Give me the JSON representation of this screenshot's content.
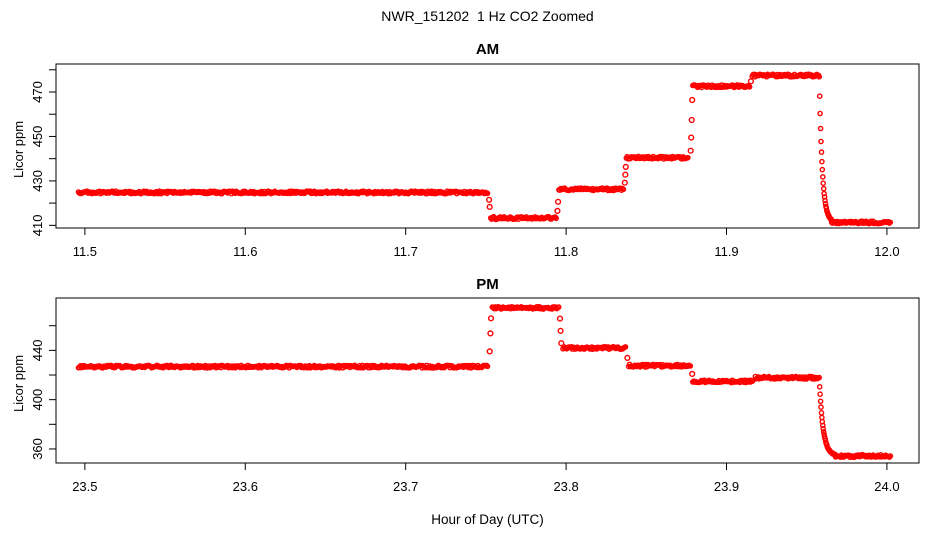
{
  "title": "NWR_151202  1 Hz CO2 Zoomed",
  "xlabel": "Hour of Day (UTC)",
  "point_color": "#ff0000",
  "axis_color": "#000000",
  "chart_data": [
    {
      "type": "scatter",
      "title": "AM",
      "ylabel": "Licor ppm",
      "marker": "open-circle",
      "grid": false,
      "xlim": [
        11.482,
        12.02
      ],
      "ylim": [
        408.8,
        482.6
      ],
      "xticks": [
        11.5,
        11.6,
        11.7,
        11.8,
        11.9,
        12.0
      ],
      "xtick_labels": [
        "11.5",
        "11.6",
        "11.7",
        "11.8",
        "11.9",
        "12.0"
      ],
      "yticks": [
        410,
        420,
        430,
        440,
        450,
        460,
        470,
        480
      ],
      "ytick_labeled": [
        410,
        430,
        450,
        470
      ],
      "ytick_labels": [
        "410",
        "430",
        "450",
        "470"
      ],
      "steps": [
        {
          "t0": 11.496,
          "t1": 11.7515,
          "ppm": 424.8
        },
        {
          "t0": 11.753,
          "t1": 11.794,
          "ppm": 413.3
        },
        {
          "t0": 11.7955,
          "t1": 11.836,
          "ppm": 426.2
        },
        {
          "t0": 11.8375,
          "t1": 11.8765,
          "ppm": 440.4
        },
        {
          "t0": 11.879,
          "t1": 11.9145,
          "ppm": 472.6
        },
        {
          "t0": 11.916,
          "t1": 11.9575,
          "ppm": 477.4
        },
        {
          "t0": 11.9655,
          "t1": 12.0025,
          "ppm": 411.3
        }
      ],
      "transition_dots": [
        [
          11.752,
          421.5
        ],
        [
          11.7524,
          418.3
        ],
        [
          11.7946,
          416.5
        ],
        [
          11.795,
          420.6
        ],
        [
          11.8366,
          429.2
        ],
        [
          11.8369,
          432.8
        ],
        [
          11.8372,
          436.3
        ],
        [
          11.8777,
          443.6
        ],
        [
          11.878,
          449.5
        ],
        [
          11.8783,
          457.4
        ],
        [
          11.8786,
          466.4
        ],
        [
          11.9152,
          474.8
        ]
      ],
      "ramp": {
        "t0": 11.9578,
        "t_end": 11.9655,
        "from": 477.0,
        "to": 411.3,
        "tau": 0.0019
      }
    },
    {
      "type": "scatter",
      "title": "PM",
      "ylabel": "Licor ppm",
      "marker": "open-circle",
      "grid": false,
      "xlim": [
        23.482,
        24.02
      ],
      "ylim": [
        348.6,
        482.5
      ],
      "xticks": [
        23.5,
        23.6,
        23.7,
        23.8,
        23.9,
        24.0
      ],
      "xtick_labels": [
        "23.5",
        "23.6",
        "23.7",
        "23.8",
        "23.9",
        "24.0"
      ],
      "yticks": [
        360,
        380,
        400,
        420,
        440,
        460
      ],
      "ytick_labeled": [
        360,
        400,
        440
      ],
      "ytick_labels": [
        "360",
        "400",
        "440"
      ],
      "steps": [
        {
          "t0": 23.496,
          "t1": 23.7515,
          "ppm": 426.8
        },
        {
          "t0": 23.754,
          "t1": 23.7955,
          "ppm": 474.5
        },
        {
          "t0": 23.798,
          "t1": 23.8375,
          "ppm": 441.9
        },
        {
          "t0": 23.839,
          "t1": 23.8775,
          "ppm": 427.6
        },
        {
          "t0": 23.879,
          "t1": 23.9165,
          "ppm": 414.8
        },
        {
          "t0": 23.918,
          "t1": 23.9575,
          "ppm": 417.8
        },
        {
          "t0": 23.968,
          "t1": 24.0025,
          "ppm": 354.3
        }
      ],
      "transition_dots": [
        [
          23.7524,
          439.2
        ],
        [
          23.7528,
          453.8
        ],
        [
          23.7532,
          466.0
        ],
        [
          23.7962,
          465.8
        ],
        [
          23.7966,
          455.9
        ],
        [
          23.797,
          445.8
        ],
        [
          23.8382,
          433.9
        ],
        [
          23.8786,
          420.9
        ]
      ],
      "ramp": {
        "t0": 23.9578,
        "t_end": 23.968,
        "from": 417.5,
        "to": 354.3,
        "tau": 0.0024
      }
    }
  ]
}
